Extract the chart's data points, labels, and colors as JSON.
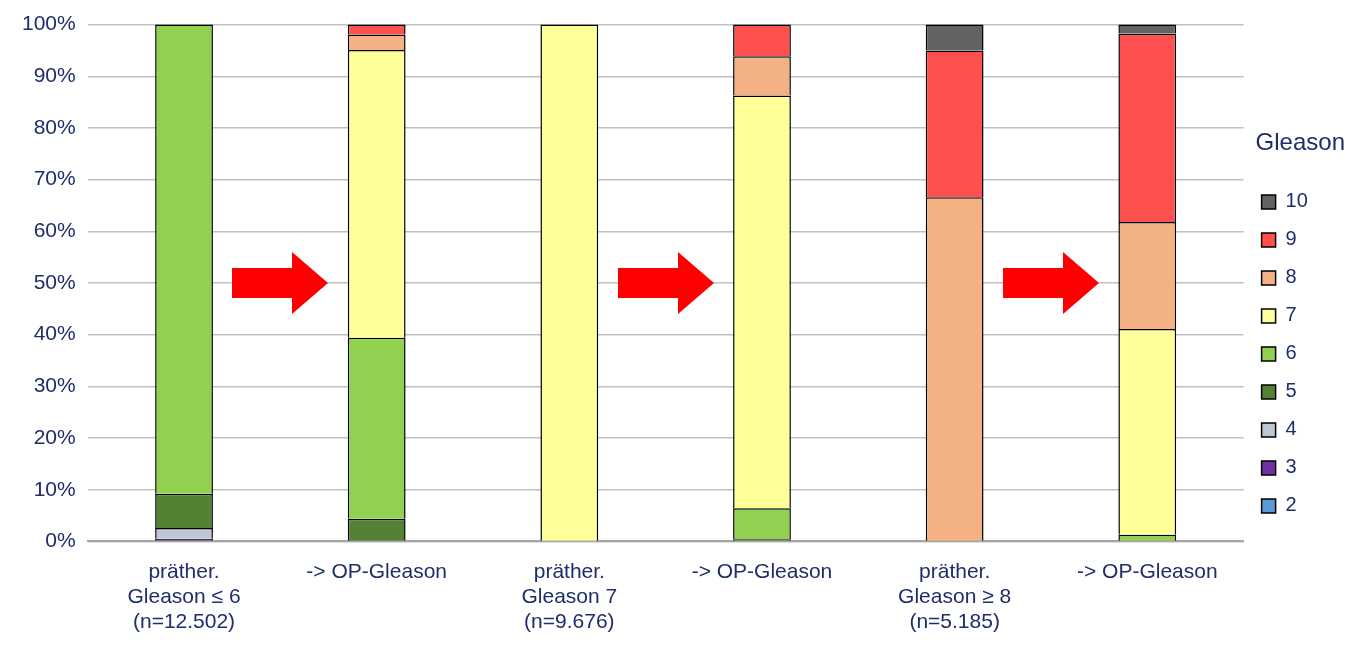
{
  "chart_data": {
    "type": "bar",
    "stacked": true,
    "legend": "right",
    "legend_title": "Gleason",
    "grid": "y",
    "categories": [
      "präther.\nGleason ≤ 6\n(n=12.502)",
      "-> OP-Gleason",
      "präther.\nGleason 7\n(n=9.676)",
      "-> OP-Gleason",
      "präther.\nGleason ≥ 8\n(n=5.185)",
      "-> OP-Gleason"
    ],
    "ylim": [
      0,
      100
    ],
    "yticks": [
      {
        "value": 0,
        "label": "0%"
      },
      {
        "value": 10,
        "label": "10%"
      },
      {
        "value": 20,
        "label": "20%"
      },
      {
        "value": 30,
        "label": "30%"
      },
      {
        "value": 40,
        "label": "40%"
      },
      {
        "value": 50,
        "label": "50%"
      },
      {
        "value": 60,
        "label": "60%"
      },
      {
        "value": 70,
        "label": "70%"
      },
      {
        "value": 80,
        "label": "80%"
      },
      {
        "value": 90,
        "label": "90%"
      },
      {
        "value": 100,
        "label": "100%"
      }
    ],
    "series": [
      {
        "name": "2",
        "color": "#5b9bd5",
        "values": [
          0,
          0,
          0,
          0,
          0,
          0
        ]
      },
      {
        "name": "3",
        "color": "#7030a0",
        "values": [
          0.5,
          0,
          0,
          0,
          0,
          0
        ]
      },
      {
        "name": "4",
        "color": "#bdc7d6",
        "values": [
          2.1,
          null,
          0,
          0,
          0,
          0
        ]
      },
      {
        "name": "5",
        "color": "#548235",
        "values": [
          6.6,
          4.4,
          0,
          0.4,
          0,
          0
        ]
      },
      {
        "name": "6",
        "color": "#92d050",
        "values": [
          90.8,
          35.0,
          0,
          6.0,
          0,
          1.3
        ]
      },
      {
        "name": "7",
        "color": "#ffff99",
        "values": [
          0,
          55.7,
          100,
          79.9,
          0,
          39.8
        ]
      },
      {
        "name": "8",
        "color": "#f4b183",
        "values": [
          0,
          3.0,
          0,
          7.6,
          66.6,
          20.7
        ]
      },
      {
        "name": "9",
        "color": "#ff5050",
        "values": [
          0,
          1.9,
          0,
          6.1,
          28.4,
          36.5
        ]
      },
      {
        "name": "10",
        "color": "#636363",
        "values": [
          0,
          0,
          0,
          0,
          5.0,
          1.7
        ]
      }
    ]
  }
}
